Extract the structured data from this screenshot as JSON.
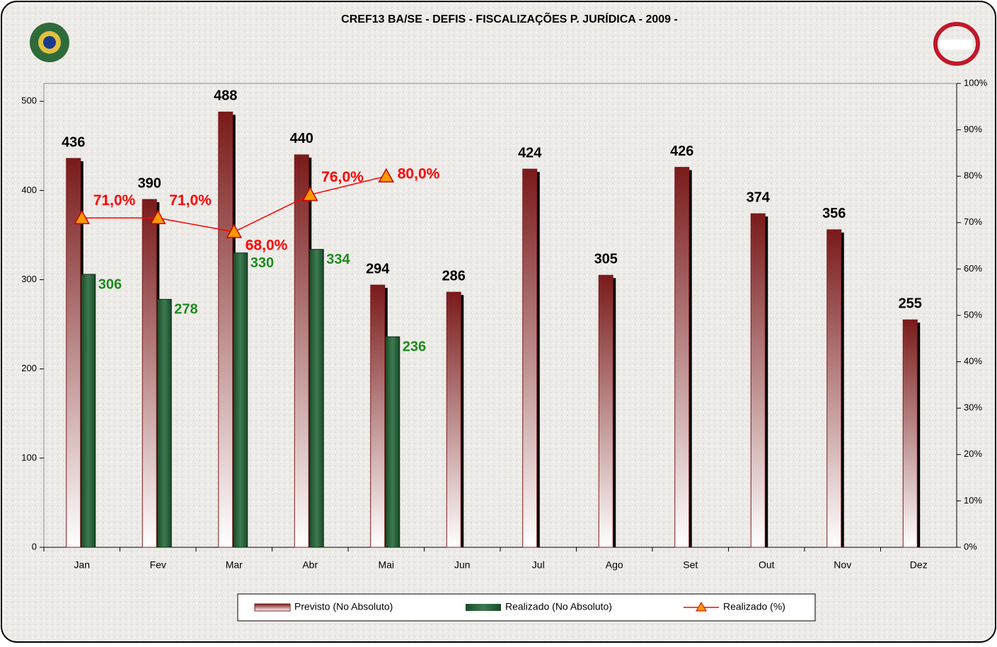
{
  "chart_data": {
    "type": "bar",
    "title": "CREF13 BA/SE - DEFIS - FISCALIZAÇÕES P. JURÍDICA - 2009 -",
    "categories": [
      "Jan",
      "Fev",
      "Mar",
      "Abr",
      "Mai",
      "Jun",
      "Jul",
      "Ago",
      "Set",
      "Out",
      "Nov",
      "Dez"
    ],
    "series": [
      {
        "name": "Previsto (No Absoluto)",
        "color": "#7a1a1a",
        "values": [
          436,
          390,
          488,
          440,
          294,
          286,
          424,
          305,
          426,
          374,
          356,
          255
        ]
      },
      {
        "name": "Realizado (No Absoluto)",
        "color": "#1f5a32",
        "values": [
          306,
          278,
          330,
          334,
          236,
          null,
          null,
          null,
          null,
          null,
          null,
          null
        ]
      },
      {
        "name": "Realizado (%)",
        "color": "#ff0000",
        "axis": "y2",
        "values": [
          71,
          71,
          68,
          76,
          80,
          null,
          null,
          null,
          null,
          null,
          null,
          null
        ],
        "value_labels": [
          "71,0%",
          "71,0%",
          "68,0%",
          "76,0%",
          "80,0%",
          null,
          null,
          null,
          null,
          null,
          null,
          null
        ]
      }
    ],
    "ylim": [
      0,
      520
    ],
    "yticks": [
      0,
      100,
      200,
      300,
      400,
      500
    ],
    "y2lim": [
      0,
      100
    ],
    "y2ticks": [
      {
        "value": 0,
        "label": "0%"
      },
      {
        "value": 10,
        "label": "10%"
      },
      {
        "value": 20,
        "label": "20%"
      },
      {
        "value": 30,
        "label": "30%"
      },
      {
        "value": 40,
        "label": "40%"
      },
      {
        "value": 50,
        "label": "50%"
      },
      {
        "value": 60,
        "label": "60%"
      },
      {
        "value": 70,
        "label": "70%"
      },
      {
        "value": 80,
        "label": "80%"
      },
      {
        "value": 90,
        "label": "90%"
      },
      {
        "value": 100,
        "label": "100%"
      }
    ],
    "legend": "bottom"
  }
}
